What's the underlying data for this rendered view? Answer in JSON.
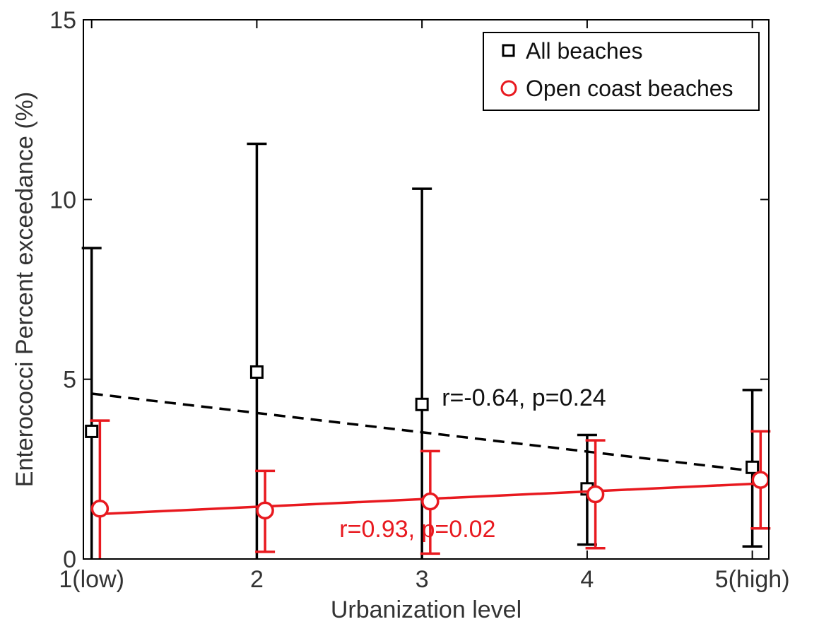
{
  "chart_data": {
    "type": "scatter",
    "title": "",
    "xlabel": "Urbanization level",
    "ylabel": "Enterococci Percent exceedance (%)",
    "xlim": [
      0.95,
      5.1
    ],
    "ylim": [
      0,
      15
    ],
    "xticks": [
      1,
      2,
      3,
      4,
      5
    ],
    "xtick_labels": [
      "1(low)",
      "2",
      "3",
      "4",
      "5(high)"
    ],
    "yticks": [
      0,
      5,
      10,
      15
    ],
    "ytick_labels": [
      "0",
      "5",
      "10",
      "15"
    ],
    "grid": false,
    "legend_position": "top-right",
    "series": [
      {
        "name": "All beaches",
        "marker": "square",
        "color": "#000000",
        "x": [
          1,
          2,
          3,
          4,
          5
        ],
        "y": [
          3.55,
          5.2,
          4.3,
          1.95,
          2.55
        ],
        "err_low": [
          0,
          0,
          0,
          0.4,
          0.35
        ],
        "err_high": [
          8.65,
          11.55,
          10.3,
          3.45,
          4.7
        ],
        "fit": {
          "x": [
            1,
            5
          ],
          "y": [
            4.6,
            2.45
          ],
          "style": "dashed"
        },
        "annotation": {
          "text": "r=-0.64, p=0.24",
          "x": 3.12,
          "y": 4.5
        }
      },
      {
        "name": "Open coast beaches",
        "marker": "circle",
        "color": "#e8191f",
        "x": [
          1.05,
          2.05,
          3.05,
          4.05,
          5.05
        ],
        "y": [
          1.4,
          1.35,
          1.6,
          1.8,
          2.2
        ],
        "err_low": [
          0,
          0.2,
          0.15,
          0.3,
          0.85
        ],
        "err_high": [
          3.85,
          2.45,
          3.0,
          3.3,
          3.55
        ],
        "fit": {
          "x": [
            1.05,
            5.05
          ],
          "y": [
            1.25,
            2.1
          ],
          "style": "solid"
        },
        "annotation": {
          "text": "r=0.93, p=0.02",
          "x": 2.5,
          "y": 0.85
        }
      }
    ]
  }
}
